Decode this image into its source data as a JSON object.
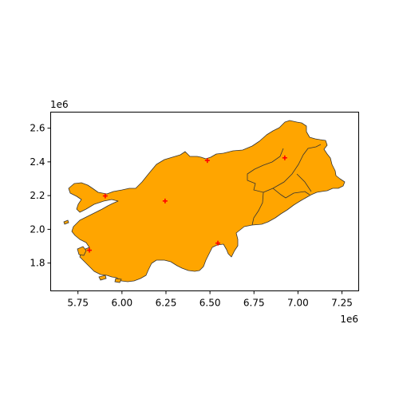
{
  "chart_data": {
    "type": "scatter",
    "description_free": true,
    "region_fill": "#FFA500",
    "region_edge": "#333333",
    "marker_color": "#FF0000",
    "marker_shape": "plus",
    "xlim": [
      5.595,
      7.345
    ],
    "ylim": [
      1.635,
      2.695
    ],
    "x_ticks": [
      5.75,
      6.0,
      6.25,
      6.5,
      6.75,
      7.0,
      7.25
    ],
    "x_tick_labels": [
      "5.75",
      "6.00",
      "6.25",
      "6.50",
      "6.75",
      "7.00",
      "7.25"
    ],
    "y_ticks": [
      1.8,
      2.0,
      2.2,
      2.4,
      2.6
    ],
    "y_tick_labels": [
      "1.8",
      "2.0",
      "2.2",
      "2.4",
      "2.6"
    ],
    "x_exponent": "1e6",
    "y_exponent": "1e6",
    "points": [
      {
        "x": 5.905,
        "y": 2.198
      },
      {
        "x": 6.245,
        "y": 2.168
      },
      {
        "x": 6.485,
        "y": 2.408
      },
      {
        "x": 6.925,
        "y": 2.424
      },
      {
        "x": 6.545,
        "y": 1.918
      },
      {
        "x": 5.815,
        "y": 1.876
      }
    ]
  }
}
